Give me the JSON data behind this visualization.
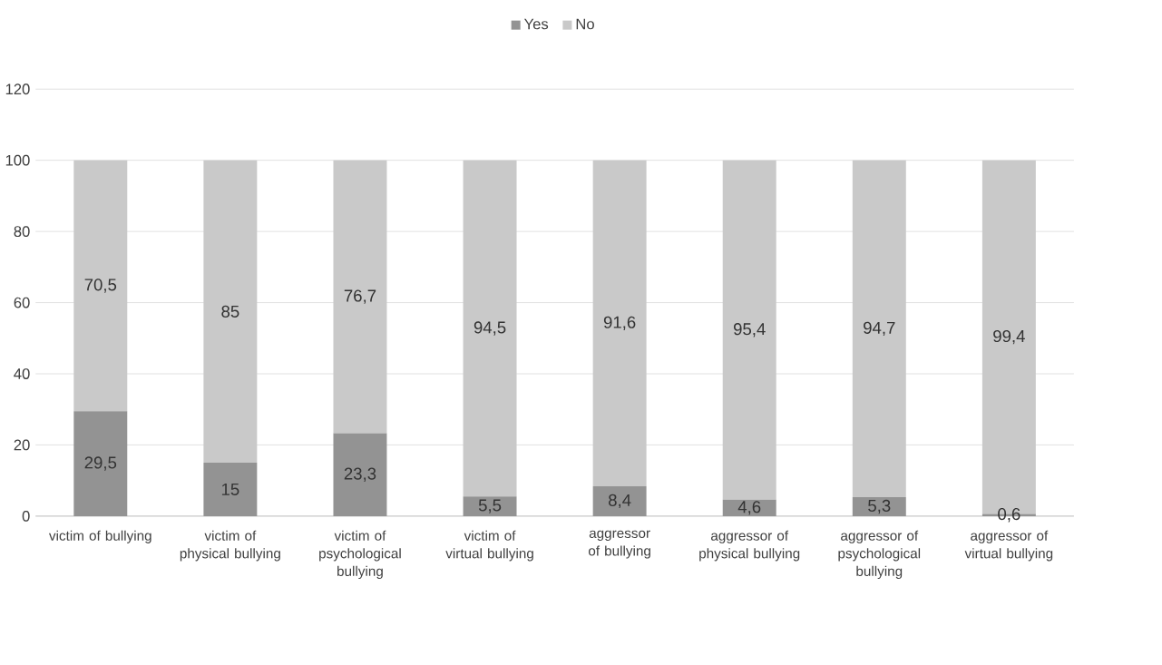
{
  "chart_data": {
    "type": "bar",
    "stacked": true,
    "categories": [
      "victim of bullying",
      "victim of physical bullying",
      "victim of psychological bullying",
      "victim of virtual bullying",
      "aggressor of bullying",
      "aggressor of physical bullying",
      "aggressor of psychological bullying",
      "aggressor of virtual bullying"
    ],
    "series": [
      {
        "name": "Yes",
        "color": "#939393",
        "values": [
          29.5,
          15,
          23.3,
          5.5,
          8.4,
          4.6,
          5.3,
          0.6
        ],
        "value_labels": [
          "29,5",
          "15",
          "23,3",
          "5,5",
          "8,4",
          "4,6",
          "5,3",
          "0,6"
        ]
      },
      {
        "name": "No",
        "color": "#c9c9c9",
        "values": [
          70.5,
          85,
          76.7,
          94.5,
          91.6,
          95.4,
          94.7,
          99.4
        ],
        "value_labels": [
          "70,5",
          "85",
          "76,7",
          "94,5",
          "91,6",
          "95,4",
          "94,7",
          "99,4"
        ]
      }
    ],
    "ylim": [
      0,
      120
    ],
    "yticks": [
      0,
      20,
      40,
      60,
      80,
      100,
      120
    ],
    "grid": "y",
    "legend": "top"
  }
}
